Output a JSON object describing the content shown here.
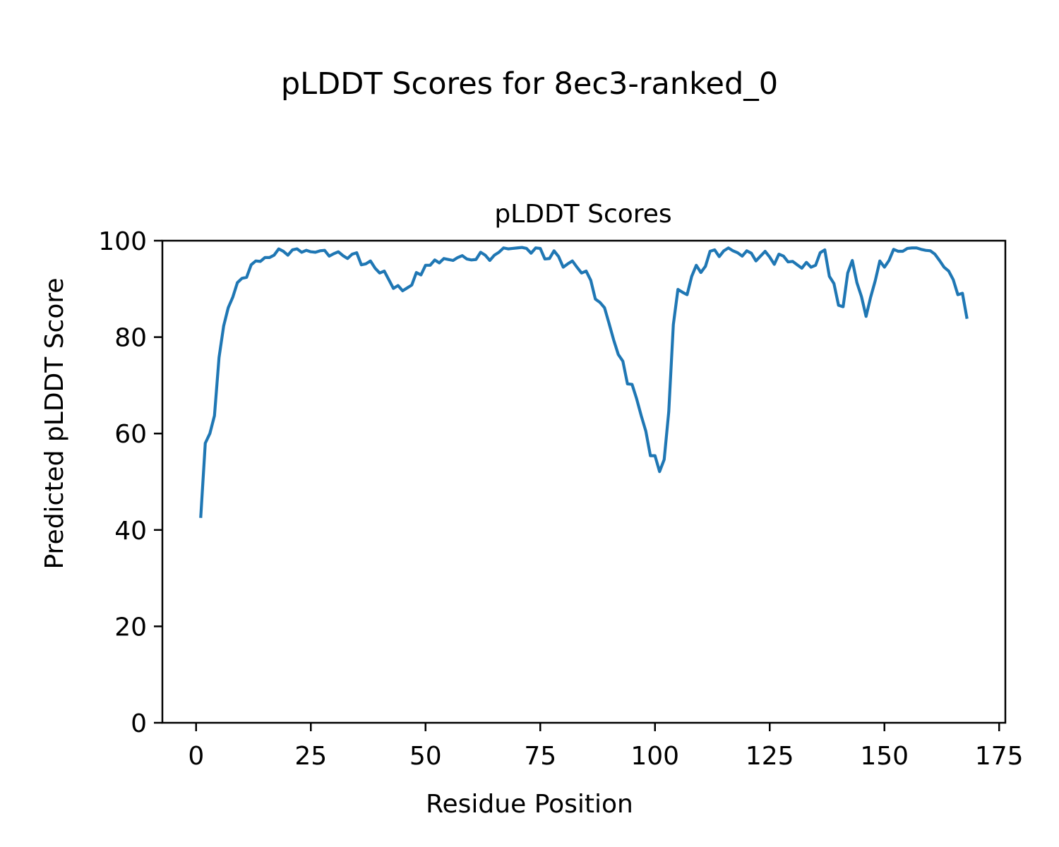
{
  "figure": {
    "suptitle": "pLDDT Scores for 8ec3-ranked_0"
  },
  "chart_data": {
    "type": "line",
    "title": "pLDDT Scores",
    "xlabel": "Residue Position",
    "ylabel": "Predicted pLDDT Score",
    "xlim": [
      -7.35,
      176.35
    ],
    "ylim": [
      0,
      100
    ],
    "xticks": [
      0,
      25,
      50,
      75,
      100,
      125,
      150,
      175
    ],
    "yticks": [
      0,
      20,
      40,
      60,
      80,
      100
    ],
    "grid": false,
    "legend": "none",
    "series": [
      {
        "color": "#1f77b4",
        "x": [
          1,
          2,
          3,
          4,
          5,
          6,
          7,
          8,
          9,
          10,
          11,
          12,
          13,
          14,
          15,
          16,
          17,
          18,
          19,
          20,
          21,
          22,
          23,
          24,
          25,
          26,
          27,
          28,
          29,
          30,
          31,
          32,
          33,
          34,
          35,
          36,
          37,
          38,
          39,
          40,
          41,
          42,
          43,
          44,
          45,
          46,
          47,
          48,
          49,
          50,
          51,
          52,
          53,
          54,
          55,
          56,
          57,
          58,
          59,
          60,
          61,
          62,
          63,
          64,
          65,
          66,
          67,
          68,
          69,
          70,
          71,
          72,
          73,
          74,
          75,
          76,
          77,
          78,
          79,
          80,
          81,
          82,
          83,
          84,
          85,
          86,
          87,
          88,
          89,
          90,
          91,
          92,
          93,
          94,
          95,
          96,
          97,
          98,
          99,
          100,
          101,
          102,
          103,
          104,
          105,
          106,
          107,
          108,
          109,
          110,
          111,
          112,
          113,
          114,
          115,
          116,
          117,
          118,
          119,
          120,
          121,
          122,
          123,
          124,
          125,
          126,
          127,
          128,
          129,
          130,
          131,
          132,
          133,
          134,
          135,
          136,
          137,
          138,
          139,
          140,
          141,
          142,
          143,
          144,
          145,
          146,
          147,
          148,
          149,
          150,
          151,
          152,
          153,
          154,
          155,
          156,
          157,
          158,
          159,
          160,
          161,
          162,
          163,
          164,
          165,
          166,
          167,
          168
        ],
        "y": [
          42.5,
          58.0,
          60.0,
          63.7,
          75.8,
          82.3,
          86.1,
          88.3,
          91.3,
          92.2,
          92.4,
          95.0,
          95.8,
          95.7,
          96.5,
          96.5,
          97.0,
          98.3,
          97.8,
          97.0,
          98.1,
          98.3,
          97.6,
          98.0,
          97.7,
          97.6,
          97.9,
          98.0,
          96.8,
          97.3,
          97.7,
          96.9,
          96.3,
          97.2,
          97.5,
          95.0,
          95.2,
          95.8,
          94.3,
          93.3,
          93.7,
          91.9,
          90.1,
          90.7,
          89.6,
          90.2,
          90.8,
          93.4,
          92.9,
          94.9,
          94.9,
          96.0,
          95.4,
          96.3,
          96.1,
          95.9,
          96.5,
          96.9,
          96.2,
          96.0,
          96.1,
          97.6,
          97.0,
          95.9,
          97.0,
          97.6,
          98.5,
          98.3,
          98.4,
          98.5,
          98.6,
          98.4,
          97.4,
          98.5,
          98.4,
          96.2,
          96.3,
          97.9,
          96.7,
          94.5,
          95.2,
          95.8,
          94.5,
          93.3,
          93.7,
          91.8,
          87.9,
          87.2,
          86.1,
          82.8,
          79.4,
          76.4,
          75.0,
          70.3,
          70.2,
          67.2,
          63.7,
          60.5,
          55.4,
          55.4,
          52.1,
          54.6,
          64.5,
          82.6,
          89.9,
          89.3,
          88.8,
          92.6,
          94.9,
          93.4,
          94.7,
          97.8,
          98.1,
          96.7,
          97.9,
          98.5,
          97.9,
          97.5,
          96.8,
          97.9,
          97.4,
          95.8,
          96.8,
          97.8,
          96.6,
          95.1,
          97.2,
          96.8,
          95.6,
          95.7,
          95.0,
          94.3,
          95.5,
          94.5,
          94.9,
          97.5,
          98.1,
          92.6,
          91.1,
          86.6,
          86.3,
          93.3,
          95.9,
          91.3,
          88.4,
          84.3,
          88.3,
          91.7,
          95.8,
          94.5,
          95.9,
          98.2,
          97.8,
          97.8,
          98.4,
          98.5,
          98.5,
          98.2,
          98.0,
          97.9,
          97.2,
          95.9,
          94.5,
          93.7,
          91.9,
          88.8,
          89.1,
          83.8
        ]
      }
    ]
  }
}
